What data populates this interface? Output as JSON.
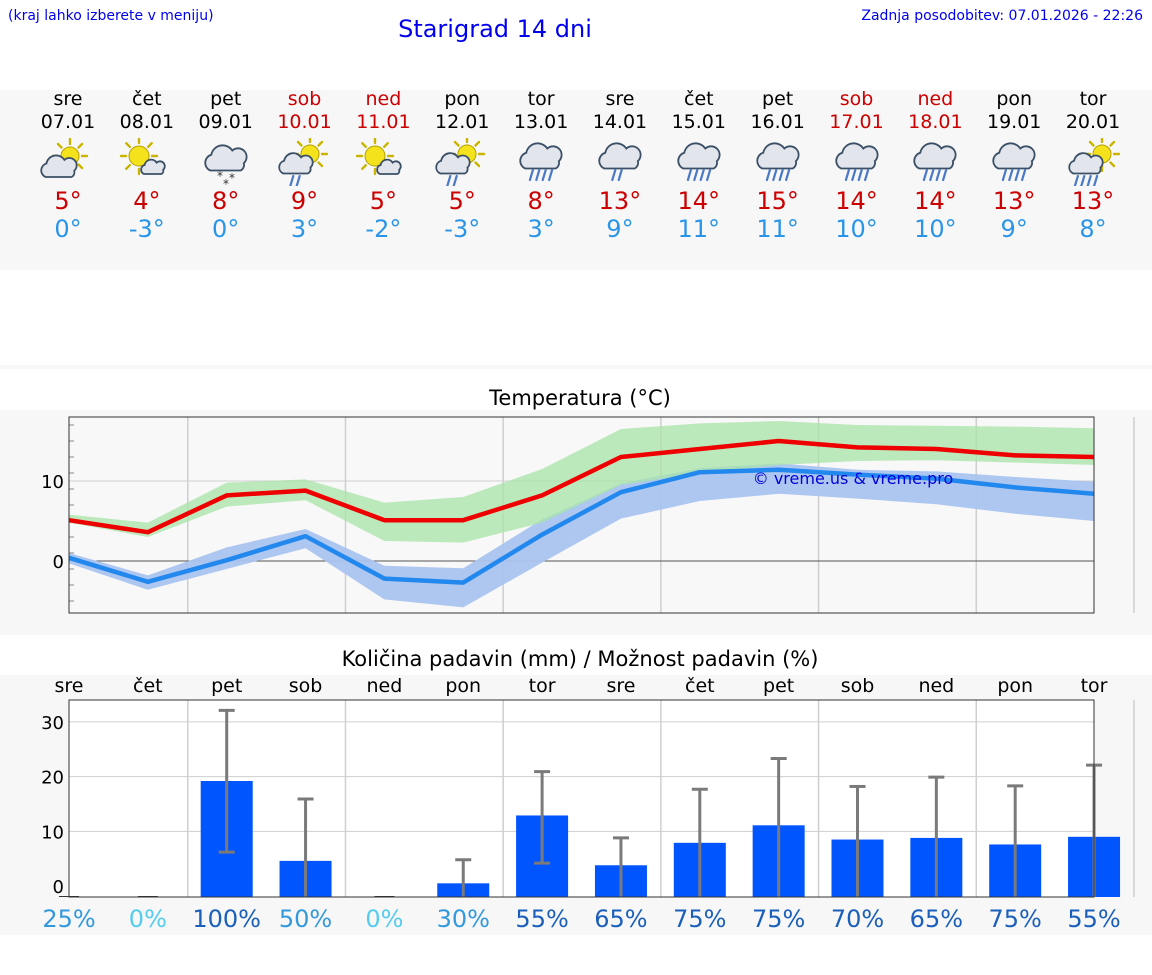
{
  "header": {
    "hint": "(kraj lahko izberete v meniju)",
    "title": "Starigrad 14 dni",
    "updated": "Zadnja posodobitev: 07.01.2026 - 22:26"
  },
  "forecast": [
    {
      "day": "sre",
      "date": "07.01",
      "weekend": false,
      "icon": "partly-cloudy-sun-icon",
      "max": "5°",
      "min": "0°"
    },
    {
      "day": "čet",
      "date": "08.01",
      "weekend": false,
      "icon": "sun-small-cloud-icon",
      "max": "4°",
      "min": "-3°"
    },
    {
      "day": "pet",
      "date": "09.01",
      "weekend": false,
      "icon": "cloud-snow-icon",
      "max": "8°",
      "min": "0°"
    },
    {
      "day": "sob",
      "date": "10.01",
      "weekend": true,
      "icon": "sun-cloud-light-rain-icon",
      "max": "9°",
      "min": "3°"
    },
    {
      "day": "ned",
      "date": "11.01",
      "weekend": true,
      "icon": "sun-small-cloud-icon",
      "max": "5°",
      "min": "-2°"
    },
    {
      "day": "pon",
      "date": "12.01",
      "weekend": false,
      "icon": "sun-cloud-light-rain-icon",
      "max": "5°",
      "min": "-3°"
    },
    {
      "day": "tor",
      "date": "13.01",
      "weekend": false,
      "icon": "cloud-rain-icon",
      "max": "8°",
      "min": "3°"
    },
    {
      "day": "sre",
      "date": "14.01",
      "weekend": false,
      "icon": "cloud-light-rain-icon",
      "max": "13°",
      "min": "9°"
    },
    {
      "day": "čet",
      "date": "15.01",
      "weekend": false,
      "icon": "cloud-rain-icon",
      "max": "14°",
      "min": "11°"
    },
    {
      "day": "pet",
      "date": "16.01",
      "weekend": false,
      "icon": "cloud-rain-icon",
      "max": "15°",
      "min": "11°"
    },
    {
      "day": "sob",
      "date": "17.01",
      "weekend": true,
      "icon": "cloud-rain-icon",
      "max": "14°",
      "min": "10°"
    },
    {
      "day": "ned",
      "date": "18.01",
      "weekend": true,
      "icon": "cloud-rain-icon",
      "max": "14°",
      "min": "10°"
    },
    {
      "day": "pon",
      "date": "19.01",
      "weekend": false,
      "icon": "cloud-rain-icon",
      "max": "13°",
      "min": "9°"
    },
    {
      "day": "tor",
      "date": "20.01",
      "weekend": false,
      "icon": "sun-cloud-rain-icon",
      "max": "13°",
      "min": "8°"
    }
  ],
  "colors": {
    "max": "#ee0000",
    "min": "#2288ee",
    "maxBand": "#a8e4a8",
    "minBand": "#aac4f0",
    "bar": "#0055ff",
    "errbar": "#7a7a7a",
    "pctLow": "#55ccee",
    "pctMid": "#3399dd",
    "pctHigh": "#1a5fbb"
  },
  "chart_data": [
    {
      "type": "line",
      "title": "Temperatura (°C)",
      "watermark": "© vreme.us & vreme.pro",
      "ylim": [
        -6.5,
        18
      ],
      "yticks": [
        0,
        10
      ],
      "x": [
        0,
        1,
        2,
        3,
        4,
        5,
        6,
        7,
        8,
        9,
        10,
        11,
        12,
        13
      ],
      "series": [
        {
          "name": "max",
          "values": [
            5.1,
            3.6,
            8.2,
            8.8,
            5.1,
            5.1,
            8.2,
            13.0,
            14.0,
            15.0,
            14.2,
            14.0,
            13.2,
            13.0
          ]
        },
        {
          "name": "min",
          "values": [
            0.4,
            -2.6,
            0.1,
            3.1,
            -2.2,
            -2.7,
            3.3,
            8.6,
            11.1,
            11.4,
            10.8,
            10.3,
            9.2,
            8.4
          ]
        }
      ],
      "bands": [
        {
          "name": "max-range",
          "lower": [
            4.8,
            3.0,
            6.8,
            7.6,
            2.5,
            2.3,
            4.8,
            9.5,
            11.0,
            12.0,
            12.5,
            12.6,
            12.3,
            12.0
          ],
          "upper": [
            5.8,
            4.8,
            9.8,
            10.2,
            7.3,
            8.0,
            11.5,
            16.5,
            17.2,
            17.5,
            17.0,
            16.9,
            16.8,
            16.6
          ]
        },
        {
          "name": "min-range",
          "lower": [
            -0.3,
            -3.6,
            -1.0,
            1.6,
            -4.8,
            -5.8,
            -0.2,
            5.3,
            7.5,
            8.4,
            7.8,
            7.1,
            5.9,
            5.0
          ],
          "upper": [
            1.0,
            -1.8,
            1.7,
            4.0,
            -0.6,
            -0.9,
            5.2,
            9.7,
            11.6,
            12.2,
            11.4,
            11.2,
            10.5,
            9.9
          ]
        }
      ]
    },
    {
      "type": "bar",
      "title": "Količina padavin (mm) / Možnost padavin (%)",
      "categories": [
        "sre",
        "čet",
        "pet",
        "sob",
        "ned",
        "pon",
        "tor",
        "sre",
        "čet",
        "pet",
        "sob",
        "ned",
        "pon",
        "tor"
      ],
      "ylim": [
        -2,
        34
      ],
      "yticks": [
        0,
        10,
        20,
        30
      ],
      "values": [
        0,
        0,
        19.2,
        4.6,
        0,
        0.5,
        12.9,
        3.8,
        7.9,
        11.1,
        8.5,
        8.8,
        7.6,
        9.0
      ],
      "err_low": [
        0,
        0,
        6.2,
        0,
        0,
        0,
        4.2,
        0,
        0,
        0,
        0,
        0,
        0,
        0
      ],
      "err_high": [
        0,
        0,
        32.1,
        15.9,
        0,
        4.8,
        20.9,
        8.8,
        17.7,
        23.3,
        18.2,
        19.9,
        18.3,
        22.1
      ],
      "probability": [
        "25%",
        "0%",
        "100%",
        "50%",
        "0%",
        "30%",
        "55%",
        "65%",
        "75%",
        "75%",
        "70%",
        "65%",
        "75%",
        "55%"
      ]
    }
  ]
}
